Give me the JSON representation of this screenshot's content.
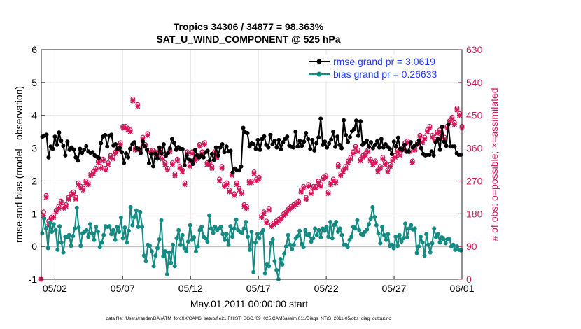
{
  "chart_data": {
    "type": "line",
    "title_line1": "Tropics 34306 / 34877 = 98.363%",
    "title_line2": "SAT_U_WIND_COMPONENT @ 525 hPa",
    "xlabel": "May.01,2011 00:00:00 start",
    "ylabel_left": "rmse and bias (model - observation)",
    "ylabel_right": "# of obs: o=possible; ×=assimilated",
    "footer": "data file: /Users/raeder/DAI/ATM_forcXX/CAM6_setup/f.e21.FHIST_BGC.f09_025.CAM6assim.011/Diags_NTrS_2011-05/obs_diag_output.nc",
    "xlim": [
      0,
      31
    ],
    "ylim_left": [
      -1,
      6
    ],
    "ylim_right": [
      0,
      630
    ],
    "x_ticks": [
      1,
      6,
      11,
      16,
      21,
      26,
      31
    ],
    "x_tick_labels": [
      "05/02",
      "05/07",
      "05/12",
      "05/17",
      "05/22",
      "05/27",
      "06/01"
    ],
    "y_ticks_left": [
      -1,
      0,
      1,
      2,
      3,
      4,
      5,
      6
    ],
    "y_ticks_right": [
      0,
      90,
      180,
      270,
      360,
      450,
      540,
      630
    ],
    "zero_line": 0,
    "legend": [
      {
        "name": "rmse",
        "label": "rmse grand pr = 3.0619"
      },
      {
        "name": "bias",
        "label": "bias grand pr = 0.26633"
      }
    ],
    "series": [
      {
        "name": "rmse",
        "color": "#000000",
        "values": [
          3.35,
          3.38,
          3.41,
          2.72,
          3.05,
          2.98,
          3.35,
          3.1,
          3.48,
          3.22,
          3.07,
          2.78,
          3.2,
          2.95,
          3.02,
          2.96,
          2.72,
          2.62,
          2.98,
          2.86,
          2.95,
          3.06,
          2.9,
          2.86,
          2.88,
          2.78,
          2.74,
          2.7,
          3.15,
          3.35,
          3.4,
          3.05,
          3.38,
          3.41,
          3.08,
          3.12,
          2.97,
          3.01,
          2.88,
          2.55,
          2.84,
          2.72,
          2.98,
          3.12,
          3.18,
          3.0,
          2.98,
          2.85,
          3.21,
          3.05,
          2.95,
          2.54,
          2.82,
          2.45,
          2.84,
          2.68,
          3.02,
          2.85,
          3.12,
          2.76,
          2.85,
          3.0,
          3.28,
          3.16,
          2.95,
          3.03,
          2.98,
          2.97,
          2.48,
          2.78,
          2.66,
          2.62,
          2.52,
          2.94,
          2.78,
          2.72,
          2.78,
          2.72,
          2.88,
          2.92,
          2.62,
          2.82,
          2.64,
          3.02,
          2.78,
          3.02,
          3.12,
          2.88,
          3.05,
          2.9,
          2.92,
          2.26,
          2.38,
          2.32,
          2.32,
          2.44,
          3.62,
          3.48,
          3.46,
          3.05,
          3.14,
          3.12,
          2.98,
          3.25,
          2.95,
          3.28,
          3.36,
          3.1,
          3.02,
          3.4,
          3.12,
          3.22,
          3.02,
          3.25,
          2.97,
          3.18,
          3.28,
          3.35,
          3.08,
          3.04,
          3.02,
          3.5,
          3.05,
          3.22,
          3.07,
          3.2,
          3.46,
          3.28,
          2.98,
          3.25,
          2.93,
          3.15,
          3.33,
          3.9,
          3.1,
          3.2,
          3.02,
          3.14,
          3.26,
          3.5,
          3.04,
          3.35,
          3.1,
          3.0,
          3.85,
          3.4,
          3.19,
          3.34,
          3.52,
          3.58,
          3.84,
          3.38,
          3.82,
          3.1,
          3.16,
          3.23,
          3.04,
          3.18,
          3.0,
          3.1,
          3.21,
          3.02,
          3.28,
          3.02,
          3.12,
          3.04,
          2.98,
          2.82,
          3.2,
          3.05,
          3.32,
          2.98,
          2.95,
          3.1,
          2.89,
          2.9,
          3.18,
          3.02,
          3.08,
          3.12,
          3.23,
          3.0,
          2.82,
          2.78,
          2.8,
          2.8,
          2.9,
          2.78,
          3.18,
          3.28,
          2.95,
          3.65,
          3.2,
          3.07,
          3.72,
          3.05,
          3.05,
          3.05,
          2.85,
          2.8,
          2.8
        ]
      },
      {
        "name": "bias",
        "color": "#138a82",
        "values": [
          0.4,
          0.85,
          0.55,
          -0.05,
          0.72,
          0.45,
          0.68,
          0.5,
          -0.1,
          0.62,
          0.12,
          -0.18,
          0.3,
          0.28,
          0.35,
          0.02,
          0.32,
          0.55,
          1.18,
          0.58,
          0.02,
          0.4,
          0.45,
          0.5,
          0.3,
          0.68,
          0.4,
          0.2,
          0.6,
          0.45,
          -0.02,
          0.12,
          0.35,
          0.62,
          0.6,
          0.62,
          0.38,
          0.5,
          0.2,
          0.6,
          0.45,
          0.88,
          0.25,
          0.58,
          0.12,
          0.48,
          1.2,
          0.65,
          0.9,
          1.1,
          0.6,
          1.05,
          0.6,
          -0.28,
          -0.45,
          0.05,
          0.02,
          -0.15,
          -0.6,
          -0.28,
          -0.05,
          0.22,
          0.8,
          -0.3,
          -0.15,
          -0.85,
          -0.18,
          -0.5,
          0.05,
          -0.6,
          0.25,
          0.5,
          0.05,
          0.35,
          -0.05,
          -0.15,
          0.15,
          0.65,
          0.2,
          0.28,
          -0.15,
          0.0,
          0.5,
          0.6,
          0.3,
          0.25,
          0.15,
          0.95,
          0.55,
          0.42,
          0.6,
          0.5,
          0.55,
          0.6,
          0.38,
          0.2,
          0.38,
          0.05,
          0.62,
          0.3,
          0.55,
          0.82,
          0.5,
          0.45,
          0.42,
          0.55,
          0.75,
          0.3,
          -0.1,
          0.45,
          -0.78,
          0.12,
          0.38,
          0.25,
          0.42,
          0.5,
          -0.82,
          -0.55,
          -0.6,
          0.1,
          0.22,
          -0.45,
          -0.72,
          -1.0,
          -0.38,
          -0.55,
          -0.22,
          0.0,
          0.35,
          0.05,
          -0.08,
          0.05,
          0.25,
          0.32,
          0.48,
          0.08,
          -0.02,
          0.5,
          0.35,
          0.38,
          0.15,
          0.25,
          0.55,
          0.35,
          0.5,
          0.28,
          0.55,
          0.48,
          0.6,
          0.3,
          0.75,
          0.25,
          0.65,
          0.75,
          0.45,
          0.55,
          0.35,
          0.05,
          0.05,
          -0.02,
          0.2,
          0.3,
          0.6,
          0.55,
          0.8,
          0.5,
          0.38,
          0.35,
          0.45,
          0.52,
          0.68,
          0.85,
          1.2,
          0.9,
          0.65,
          0.4,
          0.1,
          0.6,
          0.35,
          0.2,
          0.38,
          0.02,
          0.05,
          -0.05,
          0.3,
          0.02,
          0.35,
          0.15,
          0.25,
          0.7,
          0.28,
          0.55,
          0.65,
          0.52,
          0.55,
          -0.2,
          0.0,
          0.3,
          0.12,
          -0.28,
          0.38,
          0.05,
          -0.18,
          0.1,
          0.55,
          0.28,
          0.38,
          0.12,
          0.28,
          0.22,
          0.1,
          0.22,
          0.22,
          0.0,
          0.05,
          -0.1,
          0.0,
          -0.1,
          -0.12
        ]
      },
      {
        "name": "obs_possible",
        "color": "#d4175a",
        "axis": "right",
        "values": [
          0,
          185,
          230,
          160,
          170,
          175,
          190,
          200,
          215,
          200,
          205,
          225,
          235,
          240,
          225,
          265,
          255,
          250,
          270,
          265,
          290,
          295,
          305,
          325,
          310,
          330,
          305,
          320,
          340,
          335,
          350,
          360,
          375,
          420,
          420,
          415,
          410,
          495,
          360,
          480,
          360,
          390,
          370,
          400,
          355,
          355,
          350,
          345,
          355,
          335,
          320,
          305,
          355,
          320,
          290,
          330,
          310,
          300,
          265,
          350,
          315,
          350,
          330,
          335,
          370,
          350,
          375,
          320,
          320,
          310,
          350,
          340,
          275,
          310,
          260,
          265,
          245,
          290,
          235,
          265,
          250,
          240,
          205,
          200,
          270,
          270,
          295,
          275,
          280,
          175,
          185,
          160,
          195,
          150,
          155,
          160,
          165,
          170,
          180,
          185,
          195,
          200,
          205,
          210,
          215,
          245,
          255,
          225,
          260,
          240,
          255,
          255,
          270,
          260,
          280,
          285,
          240,
          265,
          275,
          270,
          315,
          290,
          300,
          310,
          325,
          335,
          350,
          365,
          355,
          330,
          340,
          345,
          355,
          330,
          320,
          325,
          300,
          310,
          335,
          320,
          300,
          315,
          330,
          340,
          355,
          345,
          360,
          375,
          380,
          355,
          325,
          360,
          375,
          395,
          380,
          390,
          410,
          420,
          395,
          385,
          405,
          410,
          395,
          390,
          420,
          435,
          445,
          430,
          470,
          455,
          420
        ]
      },
      {
        "name": "obs_assimilated",
        "color": "#d4175a",
        "axis": "right",
        "values": [
          0,
          175,
          225,
          150,
          165,
          170,
          185,
          195,
          210,
          195,
          200,
          220,
          230,
          235,
          220,
          260,
          250,
          245,
          265,
          260,
          285,
          290,
          300,
          320,
          305,
          325,
          300,
          315,
          335,
          330,
          345,
          355,
          370,
          415,
          415,
          410,
          405,
          490,
          355,
          475,
          355,
          385,
          365,
          395,
          350,
          350,
          345,
          340,
          350,
          330,
          315,
          300,
          350,
          315,
          285,
          325,
          305,
          295,
          260,
          345,
          310,
          345,
          325,
          330,
          365,
          345,
          370,
          315,
          315,
          305,
          345,
          335,
          270,
          305,
          255,
          260,
          240,
          285,
          230,
          260,
          245,
          235,
          200,
          195,
          265,
          265,
          290,
          270,
          275,
          170,
          180,
          155,
          190,
          145,
          150,
          155,
          160,
          165,
          175,
          180,
          190,
          195,
          200,
          205,
          210,
          240,
          250,
          220,
          255,
          235,
          250,
          250,
          265,
          255,
          275,
          280,
          235,
          260,
          270,
          265,
          310,
          285,
          295,
          305,
          320,
          330,
          345,
          360,
          350,
          325,
          335,
          340,
          350,
          325,
          315,
          320,
          295,
          305,
          330,
          315,
          295,
          310,
          325,
          335,
          350,
          340,
          355,
          370,
          375,
          350,
          320,
          355,
          370,
          390,
          375,
          385,
          405,
          415,
          390,
          380,
          400,
          405,
          390,
          385,
          415,
          430,
          440,
          425,
          465,
          450,
          415
        ]
      }
    ]
  }
}
